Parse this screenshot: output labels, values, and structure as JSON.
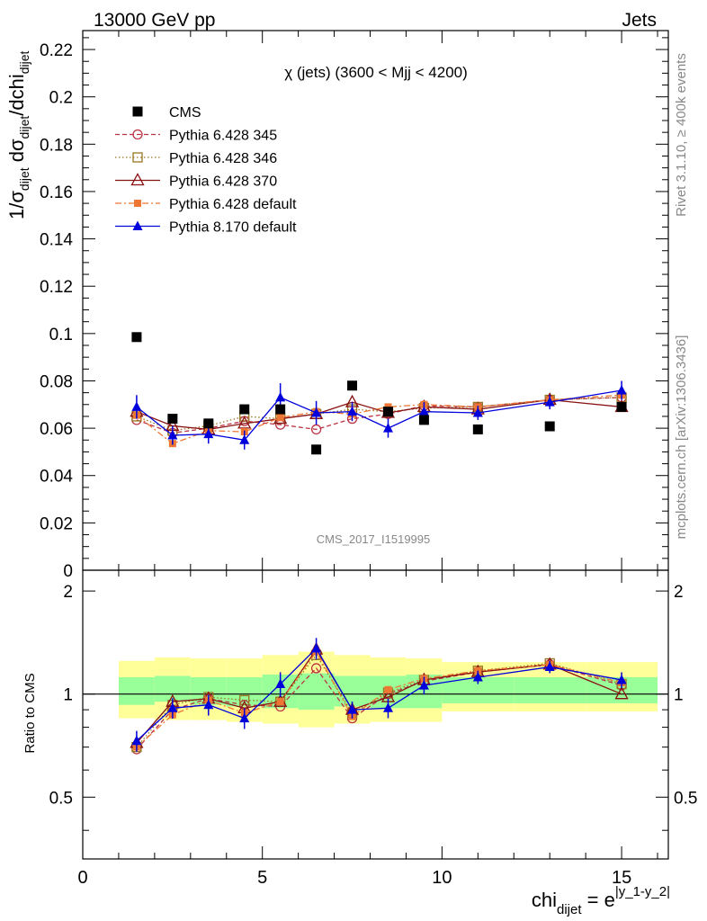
{
  "header": {
    "left": "13000 GeV pp",
    "right": "Jets"
  },
  "side_labels": {
    "rivet": "Rivet 3.1.10, ≥ 400k events",
    "mcplots": "mcplots.cern.ch [arXiv:1306.3436]"
  },
  "chart_data": {
    "type": "scatter",
    "title": "χ (jets) (3600 < Mjj < 4200)",
    "watermark": "CMS_2017_I1519995",
    "xlabel": "chi",
    "xlabel_sub": "dijet",
    "xlabel_eq": " = e",
    "xlabel_sup": "|y_1-y_2|",
    "ylabel_main": "1/σdijet dσdijet/dchidijet",
    "ylabel_ratio": "Ratio to CMS",
    "xlim": [
      0,
      16.3
    ],
    "ylim": [
      0,
      0.228
    ],
    "ratio_ylim": [
      0.33,
      2.3
    ],
    "x_ticks": [
      0,
      5,
      10,
      15
    ],
    "x_tick_labels": [
      "0",
      "5",
      "10",
      "15"
    ],
    "y_ticks": [
      0,
      0.02,
      0.04,
      0.06,
      0.08,
      0.1,
      0.12,
      0.14,
      0.16,
      0.18,
      0.2,
      0.22
    ],
    "y_tick_labels": [
      "0",
      "0.02",
      "0.04",
      "0.06",
      "0.08",
      "0.1",
      "0.12",
      "0.14",
      "0.16",
      "0.18",
      "0.2",
      "0.22"
    ],
    "ratio_ticks": [
      0.5,
      1,
      2
    ],
    "ratio_tick_labels": [
      "0.5",
      "1",
      "2"
    ],
    "x": [
      1.5,
      2.5,
      3.5,
      4.5,
      5.5,
      6.5,
      7.5,
      8.5,
      9.5,
      11,
      13,
      15
    ],
    "bins": [
      [
        1,
        2
      ],
      [
        2,
        3
      ],
      [
        3,
        4
      ],
      [
        4,
        5
      ],
      [
        5,
        6
      ],
      [
        6,
        7
      ],
      [
        7,
        8
      ],
      [
        8,
        9
      ],
      [
        9,
        10
      ],
      [
        10,
        12
      ],
      [
        12,
        14
      ],
      [
        14,
        16
      ]
    ],
    "band_inner": [
      [
        0.93,
        1.12
      ],
      [
        0.95,
        1.13
      ],
      [
        0.93,
        1.12
      ],
      [
        0.92,
        1.12
      ],
      [
        0.91,
        1.14
      ],
      [
        0.9,
        1.15
      ],
      [
        0.92,
        1.13
      ],
      [
        0.91,
        1.13
      ],
      [
        0.91,
        1.14
      ],
      [
        0.94,
        1.12
      ],
      [
        0.94,
        1.12
      ],
      [
        0.94,
        1.12
      ]
    ],
    "band_outer": [
      [
        0.85,
        1.25
      ],
      [
        0.84,
        1.28
      ],
      [
        0.84,
        1.27
      ],
      [
        0.83,
        1.27
      ],
      [
        0.82,
        1.3
      ],
      [
        0.8,
        1.33
      ],
      [
        0.82,
        1.3
      ],
      [
        0.83,
        1.28
      ],
      [
        0.83,
        1.27
      ],
      [
        0.89,
        1.24
      ],
      [
        0.89,
        1.24
      ],
      [
        0.89,
        1.24
      ]
    ],
    "series": [
      {
        "name": "CMS",
        "color": "#000000",
        "marker": "square-filled",
        "line": "none",
        "values": [
          0.0985,
          0.064,
          0.062,
          0.068,
          0.068,
          0.051,
          0.078,
          0.067,
          0.0635,
          0.0595,
          0.0608,
          0.069
        ],
        "ratio": [
          1,
          1,
          1,
          1,
          1,
          1,
          1,
          1,
          1,
          1,
          1,
          1
        ]
      },
      {
        "name": "Pythia 6.428 345",
        "color": "#bb3344",
        "marker": "circle-open",
        "line": "dashed",
        "values": [
          0.0635,
          0.058,
          0.06,
          0.063,
          0.0615,
          0.0595,
          0.064,
          0.066,
          0.0695,
          0.069,
          0.072,
          0.073
        ],
        "ratio": [
          0.69,
          0.9,
          0.97,
          0.93,
          0.92,
          1.19,
          0.85,
          1.0,
          1.09,
          1.16,
          1.22,
          1.06
        ]
      },
      {
        "name": "Pythia 6.428 346",
        "color": "#997722",
        "marker": "square-open",
        "line": "dotted",
        "values": [
          0.065,
          0.059,
          0.061,
          0.065,
          0.064,
          0.066,
          0.068,
          0.067,
          0.0685,
          0.069,
          0.072,
          0.073
        ],
        "ratio": [
          0.7,
          0.93,
          0.98,
          0.96,
          0.95,
          1.3,
          0.88,
          1.01,
          1.1,
          1.17,
          1.23,
          1.07
        ]
      },
      {
        "name": "Pythia 6.428 370",
        "color": "#881111",
        "marker": "triangle-open",
        "line": "solid",
        "values": [
          0.067,
          0.061,
          0.0595,
          0.062,
          0.064,
          0.066,
          0.071,
          0.0665,
          0.069,
          0.068,
          0.072,
          0.069
        ],
        "ratio": [
          0.72,
          0.95,
          0.97,
          0.91,
          0.95,
          1.35,
          0.9,
          0.98,
          1.1,
          1.16,
          1.22,
          1.0
        ]
      },
      {
        "name": "Pythia 6.428 default",
        "color": "#ee7733",
        "marker": "square-filled-small",
        "line": "dashdot",
        "values": [
          0.0655,
          0.0535,
          0.059,
          0.0585,
          0.0645,
          0.067,
          0.066,
          0.069,
          0.07,
          0.069,
          0.072,
          0.074
        ],
        "ratio": [
          0.7,
          0.87,
          0.96,
          0.88,
          0.95,
          1.33,
          0.86,
          1.03,
          1.11,
          1.17,
          1.22,
          1.08
        ]
      },
      {
        "name": "Pythia 8.170 default",
        "color": "#0000dd",
        "marker": "triangle-filled",
        "line": "solid",
        "values": [
          0.069,
          0.057,
          0.0575,
          0.055,
          0.073,
          0.0665,
          0.067,
          0.06,
          0.067,
          0.0665,
          0.071,
          0.076
        ],
        "ratio": [
          0.73,
          0.91,
          0.93,
          0.85,
          1.07,
          1.36,
          0.9,
          0.91,
          1.06,
          1.12,
          1.2,
          1.1
        ],
        "err": [
          0.005,
          0.004,
          0.004,
          0.004,
          0.006,
          0.005,
          0.004,
          0.004,
          0.004,
          0.003,
          0.003,
          0.004
        ]
      }
    ]
  }
}
